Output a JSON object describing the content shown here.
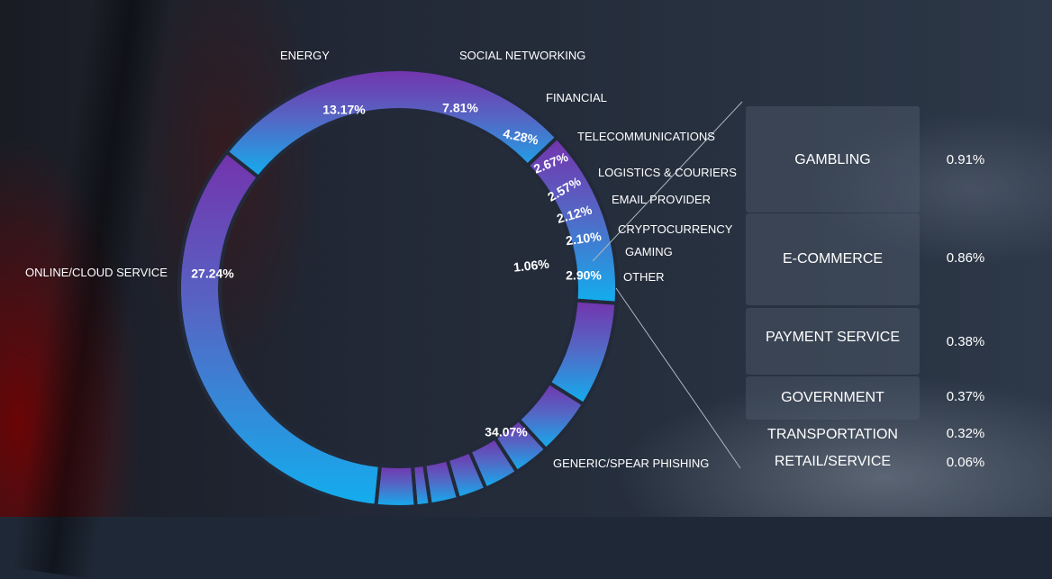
{
  "chart_data": {
    "type": "pie",
    "style": "donut",
    "segments": [
      {
        "label": "GENERIC/SPEAR PHISHING",
        "value": 34.07,
        "value_label": "34.07%",
        "color": "#27a9e8"
      },
      {
        "label": "ONLINE/CLOUD SERVICE",
        "value": 27.24,
        "value_label": "27.24%",
        "color": "#5a6bc8"
      },
      {
        "label": "ENERGY",
        "value": 13.17,
        "value_label": "13.17%",
        "color": "#7438b0"
      },
      {
        "label": "SOCIAL NETWORKING",
        "value": 7.81,
        "value_label": "7.81%",
        "color": "#6c3bb2"
      },
      {
        "label": "FINANCIAL",
        "value": 4.28,
        "value_label": "4.28%",
        "color": "#6a40b4"
      },
      {
        "label": "TELECOMMUNICATIONS",
        "value": 2.67,
        "value_label": "2.67%",
        "color": "#6646b6"
      },
      {
        "label": "LOGISTICS & COURIERS",
        "value": 2.57,
        "value_label": "2.57%",
        "color": "#604cb8"
      },
      {
        "label": "EMAIL PROVIDER",
        "value": 2.12,
        "value_label": "2.12%",
        "color": "#5a52ba"
      },
      {
        "label": "CRYPTOCURRENCY",
        "value": 2.1,
        "value_label": "2.10%",
        "color": "#5558bc"
      },
      {
        "label": "GAMING",
        "value": 1.06,
        "value_label": "1.06%",
        "color": "#505ebe"
      },
      {
        "label": "OTHER",
        "value": 2.9,
        "value_label": "2.90%",
        "color": "#4a66c2"
      }
    ],
    "breakdown_of": "OTHER",
    "breakdown": [
      {
        "label": "GAMBLING",
        "value": 0.91,
        "value_label": "0.91%"
      },
      {
        "label": "E-COMMERCE",
        "value": 0.86,
        "value_label": "0.86%"
      },
      {
        "label": "PAYMENT SERVICE",
        "value": 0.38,
        "value_label": "0.38%"
      },
      {
        "label": "GOVERNMENT",
        "value": 0.37,
        "value_label": "0.37%"
      },
      {
        "label": "TRANSPORTATION",
        "value": 0.32,
        "value_label": "0.32%"
      },
      {
        "label": "RETAIL/SERVICE",
        "value": 0.06,
        "value_label": "0.06%"
      }
    ]
  }
}
